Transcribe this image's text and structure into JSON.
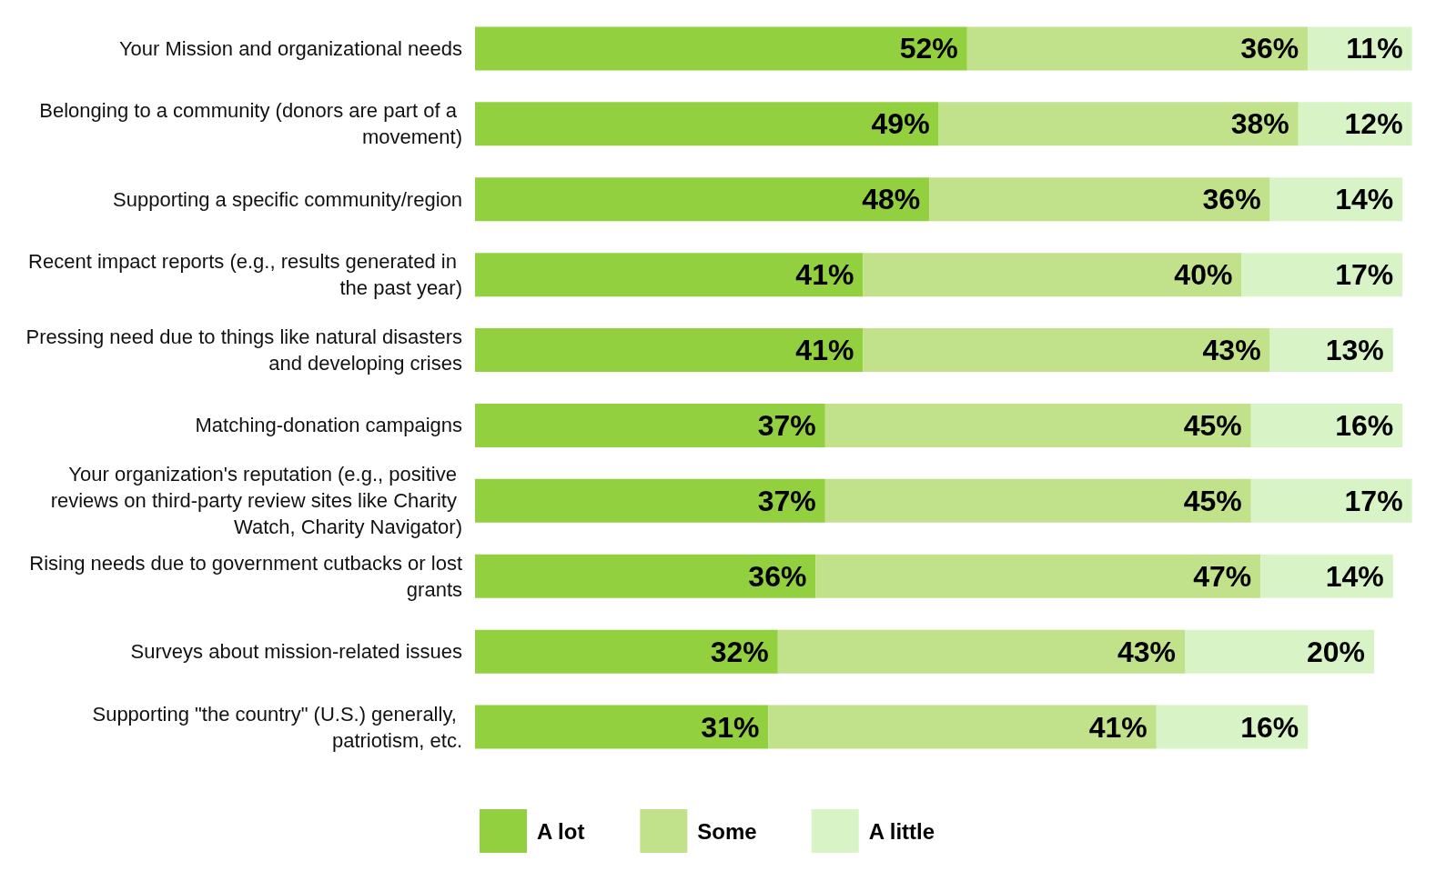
{
  "chart_data": {
    "type": "bar",
    "orientation": "horizontal",
    "stacked": true,
    "legend": "bottom left",
    "categories": [
      "Your Mission and organizational needs",
      "Belonging to a community (donors are part of a movement)",
      "Supporting a specific community/region",
      "Recent impact reports (e.g., results generated in the past year)",
      "Pressing need due to things like natural disasters and developing crises",
      "Matching-donation campaigns",
      "Your organization's reputation (e.g., positive reviews on third-party review sites like Charity Watch, Charity Navigator)",
      "Rising needs due to government cutbacks or lost grants",
      "Surveys about mission-related issues",
      "Supporting \"the country\" (U.S.) generally, patriotism, etc."
    ],
    "series": [
      {
        "name": "A lot",
        "color": "#92d040",
        "values": [
          52,
          49,
          48,
          41,
          41,
          37,
          37,
          36,
          32,
          31
        ],
        "value_labels": [
          "52%",
          "49%",
          "48%",
          "41%",
          "41%",
          "37%",
          "37%",
          "36%",
          "32%",
          "31%"
        ]
      },
      {
        "name": "Some",
        "color": "#c2e18b",
        "values": [
          36,
          38,
          36,
          40,
          43,
          45,
          45,
          47,
          43,
          41
        ],
        "value_labels": [
          "36%",
          "38%",
          "36%",
          "40%",
          "43%",
          "45%",
          "45%",
          "47%",
          "43%",
          "41%"
        ]
      },
      {
        "name": "A little",
        "color": "#d8f4c7",
        "values": [
          11,
          12,
          14,
          17,
          13,
          16,
          17,
          14,
          20,
          16
        ],
        "value_labels": [
          "11%",
          "12%",
          "14%",
          "17%",
          "13%",
          "16%",
          "17%",
          "14%",
          "20%",
          "16%"
        ]
      }
    ]
  }
}
